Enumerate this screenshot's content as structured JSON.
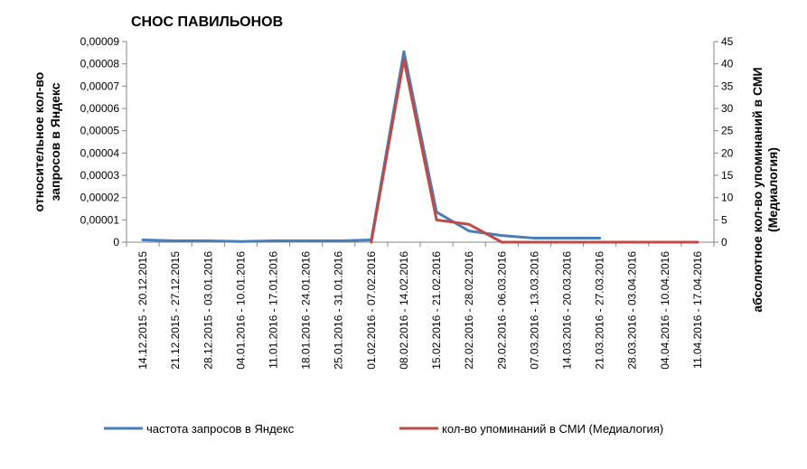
{
  "chart_data": {
    "type": "line",
    "title": "СНОС ПАВИЛЬОНОВ",
    "ylabel": "относительное кол-во запросов в Яндекс",
    "ylabel_lines": [
      "относительное кол-во",
      "запросов в Яндекс"
    ],
    "y2label": "абсолютное кол-во упоминаний в СМИ (Медиалогия)",
    "y2label_lines": [
      "абсолютное кол-во упоминаний в СМИ",
      "(Медиалогия)"
    ],
    "ylim": [
      0,
      9e-05
    ],
    "y2lim": [
      0,
      45
    ],
    "y_ticks": [
      "0",
      "0,00001",
      "0,00002",
      "0,00003",
      "0,00004",
      "0,00005",
      "0,00006",
      "0,00007",
      "0,00008",
      "0,00009"
    ],
    "y2_ticks": [
      "0",
      "5",
      "10",
      "15",
      "20",
      "25",
      "30",
      "35",
      "40",
      "45"
    ],
    "categories": [
      "14.12.2015 - 20.12.2015",
      "21.12.2015 - 27.12.2015",
      "28.12.2015 - 03.01.2016",
      "04.01.2016 - 10.01.2016",
      "11.01.2016 - 17.01.2016",
      "18.01.2016 - 24.01.2016",
      "25.01.2016 - 31.01.2016",
      "01.02.2016 - 07.02.2016",
      "08.02.2016 - 14.02.2016",
      "15.02.2016 - 21.02.2016",
      "22.02.2016 - 28.02.2016",
      "29.02.2016 - 06.03.2016",
      "07.03.2016 - 13.03.2016",
      "14.03.2016 - 20.03.2016",
      "21.03.2016 - 27.03.2016",
      "28.03.2016 - 03.04.2016",
      "04.04.2016 - 10.04.2016",
      "11.04.2016 - 17.04.2016"
    ],
    "series": [
      {
        "name": "частота запросов в Яндекс",
        "axis": "left",
        "color": "#4a7ebb",
        "values": [
          1e-06,
          6e-07,
          6e-07,
          3e-07,
          6e-07,
          6e-07,
          6e-07,
          1e-06,
          8.55e-05,
          1.35e-05,
          5e-06,
          3e-06,
          1.8e-06,
          1.8e-06,
          1.8e-06,
          null,
          null,
          null
        ]
      },
      {
        "name": "кол-во упоминаний в СМИ (Медиалогия)",
        "axis": "right",
        "color": "#be4b48",
        "values": [
          null,
          null,
          null,
          null,
          null,
          null,
          null,
          0,
          41,
          5,
          4,
          0,
          0,
          0,
          0,
          0,
          0,
          0
        ]
      }
    ],
    "grid": false,
    "legend_position": "bottom"
  }
}
